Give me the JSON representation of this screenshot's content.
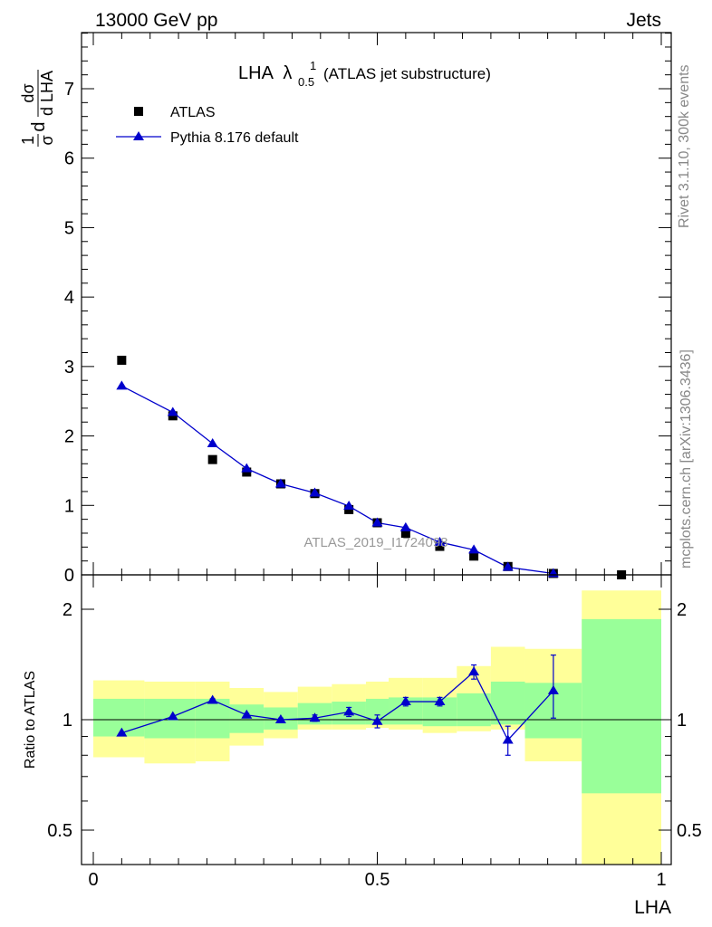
{
  "header": {
    "left": "13000 GeV pp",
    "right": "Jets"
  },
  "side_labels": {
    "rivet": "Rivet 3.1.10,  300k events",
    "mcplots": "mcplots.cern.ch [arXiv:1306.3436]"
  },
  "chart_data": [
    {
      "type": "scatter",
      "title": "LHA",
      "title_symbol": "λ",
      "title_superscript": "1",
      "title_subscript": "0.5",
      "title_suffix": "(ATLAS jet substructure)",
      "ylabel": "1/σ dσ/d LHA",
      "ylabel_parts": {
        "pre_num": "1",
        "pre_den": "σ",
        "d": "d",
        "num": "dσ",
        "den": "d LHA"
      },
      "watermark": "ATLAS_2019_I1724098",
      "xlim": [
        0,
        1
      ],
      "ylim": [
        0,
        7.85
      ],
      "y_ticks": [
        "0",
        "1",
        "2",
        "3",
        "4",
        "5",
        "6",
        "7"
      ],
      "legend_position": "top-left",
      "series": [
        {
          "name": "ATLAS",
          "marker": "square",
          "color": "#000000",
          "x": [
            0.05,
            0.14,
            0.21,
            0.27,
            0.33,
            0.39,
            0.45,
            0.5,
            0.55,
            0.61,
            0.67,
            0.73,
            0.81,
            0.93
          ],
          "y": [
            3.09,
            2.29,
            1.66,
            1.48,
            1.31,
            1.17,
            0.94,
            0.75,
            0.6,
            0.41,
            0.27,
            0.12,
            0.02,
            0.0
          ]
        },
        {
          "name": "Pythia 8.176 default",
          "marker": "triangle",
          "line": true,
          "color": "#0000cc",
          "x": [
            0.05,
            0.14,
            0.21,
            0.27,
            0.33,
            0.39,
            0.45,
            0.5,
            0.55,
            0.61,
            0.67,
            0.73,
            0.81
          ],
          "y": [
            2.72,
            2.34,
            1.89,
            1.53,
            1.31,
            1.18,
            0.99,
            0.75,
            0.68,
            0.47,
            0.36,
            0.11,
            0.02
          ]
        }
      ]
    },
    {
      "type": "scatter",
      "ylabel": "Ratio to ATLAS",
      "xlabel": "LHA",
      "xlim": [
        0,
        1
      ],
      "ylim": [
        0.35,
        2.25
      ],
      "x_ticks": [
        "0",
        "0.5",
        "1"
      ],
      "y_ticks": [
        "0.5",
        "1",
        "2"
      ],
      "reference_line": 1,
      "band_colors": {
        "outer": "#ffff99",
        "inner": "#99ff99"
      },
      "bands": [
        {
          "x0": 0.0,
          "x1": 0.09,
          "outer": [
            0.79,
            1.28
          ],
          "inner": [
            0.9,
            1.14
          ]
        },
        {
          "x0": 0.09,
          "x1": 0.18,
          "outer": [
            0.76,
            1.27
          ],
          "inner": [
            0.89,
            1.14
          ]
        },
        {
          "x0": 0.18,
          "x1": 0.24,
          "outer": [
            0.77,
            1.27
          ],
          "inner": [
            0.89,
            1.14
          ]
        },
        {
          "x0": 0.24,
          "x1": 0.3,
          "outer": [
            0.85,
            1.22
          ],
          "inner": [
            0.92,
            1.1
          ]
        },
        {
          "x0": 0.3,
          "x1": 0.36,
          "outer": [
            0.89,
            1.19
          ],
          "inner": [
            0.94,
            1.08
          ]
        },
        {
          "x0": 0.36,
          "x1": 0.42,
          "outer": [
            0.94,
            1.23
          ],
          "inner": [
            0.97,
            1.11
          ]
        },
        {
          "x0": 0.42,
          "x1": 0.48,
          "outer": [
            0.94,
            1.25
          ],
          "inner": [
            0.97,
            1.12
          ]
        },
        {
          "x0": 0.48,
          "x1": 0.52,
          "outer": [
            0.95,
            1.27
          ],
          "inner": [
            0.97,
            1.14
          ]
        },
        {
          "x0": 0.52,
          "x1": 0.58,
          "outer": [
            0.94,
            1.3
          ],
          "inner": [
            0.97,
            1.15
          ]
        },
        {
          "x0": 0.58,
          "x1": 0.64,
          "outer": [
            0.92,
            1.3
          ],
          "inner": [
            0.96,
            1.15
          ]
        },
        {
          "x0": 0.64,
          "x1": 0.7,
          "outer": [
            0.93,
            1.4
          ],
          "inner": [
            0.96,
            1.18
          ]
        },
        {
          "x0": 0.7,
          "x1": 0.76,
          "outer": [
            0.94,
            1.58
          ],
          "inner": [
            0.97,
            1.27
          ]
        },
        {
          "x0": 0.76,
          "x1": 0.86,
          "outer": [
            0.77,
            1.56
          ],
          "inner": [
            0.89,
            1.26
          ]
        },
        {
          "x0": 0.86,
          "x1": 1.0,
          "outer": [
            0.35,
            2.25
          ],
          "inner": [
            0.63,
            1.88
          ]
        }
      ],
      "series": [
        {
          "name": "Pythia 8.176 default",
          "marker": "triangle",
          "line": true,
          "color": "#0000cc",
          "x": [
            0.05,
            0.14,
            0.21,
            0.27,
            0.33,
            0.39,
            0.45,
            0.5,
            0.55,
            0.61,
            0.67,
            0.73,
            0.81
          ],
          "y": [
            0.92,
            1.02,
            1.13,
            1.03,
            1.0,
            1.01,
            1.05,
            0.99,
            1.12,
            1.12,
            1.35,
            0.88,
            1.2
          ],
          "err_low": [
            0.0,
            0.0,
            0.0,
            0.01,
            0.01,
            0.02,
            0.03,
            0.04,
            0.03,
            0.03,
            0.06,
            0.08,
            0.19
          ],
          "err_high": [
            0.0,
            0.0,
            0.01,
            0.01,
            0.01,
            0.02,
            0.03,
            0.04,
            0.03,
            0.03,
            0.06,
            0.08,
            0.3
          ]
        }
      ]
    }
  ]
}
